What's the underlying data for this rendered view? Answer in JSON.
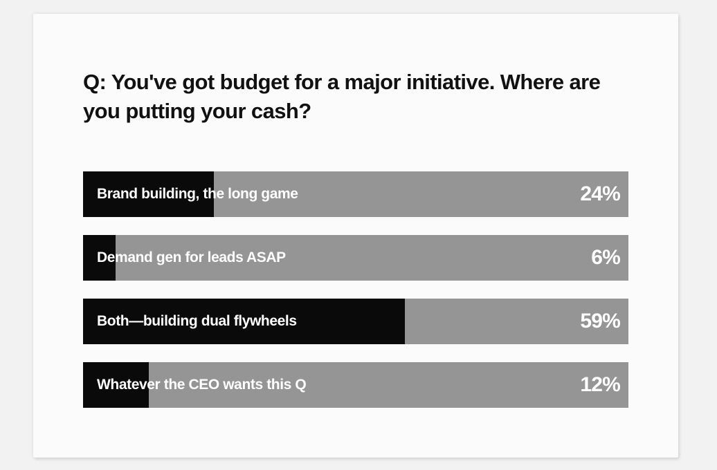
{
  "question": "Q: You've got budget for a major initiative. Where are you putting your cash?",
  "colors": {
    "fill": "#0a0a0a",
    "track": "#959595",
    "background": "#fbfbfb",
    "text": "#111111"
  },
  "chart_data": {
    "type": "bar",
    "orientation": "horizontal",
    "title": "Q: You've got budget for a major initiative. Where are you putting your cash?",
    "xlim": [
      0,
      100
    ],
    "categories": [
      "Brand building, the long game",
      "Demand gen for leads ASAP",
      "Both—building dual flywheels",
      "Whatever the CEO wants this Q"
    ],
    "values": [
      24,
      6,
      59,
      12
    ],
    "value_labels": [
      "24%",
      "6%",
      "59%",
      "12%"
    ]
  }
}
